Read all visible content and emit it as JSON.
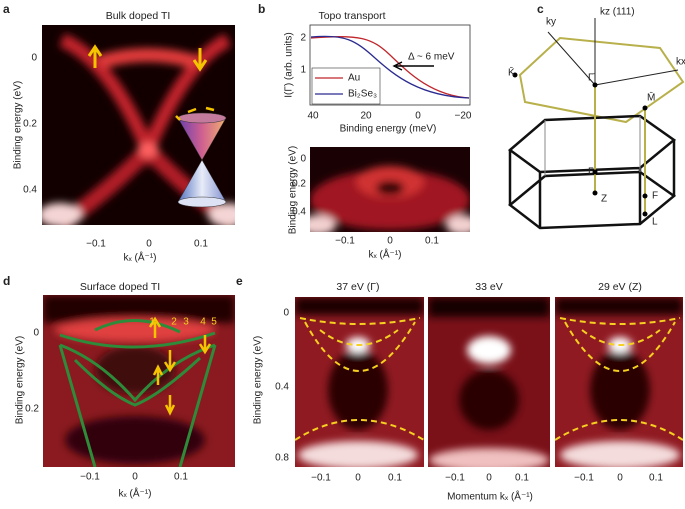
{
  "panel_a": {
    "letter": "a",
    "title": "Bulk doped TI",
    "y_axis_label": "Binding energy (eV)",
    "x_axis_label": "kₓ (Å⁻¹)",
    "y_ticks": [
      "0",
      "0.2",
      "0.4"
    ],
    "x_ticks": [
      "−0.1",
      "0",
      "0.1"
    ]
  },
  "panel_b": {
    "letter": "b",
    "title": "Topo transport",
    "top": {
      "y_axis_label": "I(Γ) (arb. units)",
      "x_axis_label": "Binding energy (meV)",
      "y_ticks": [
        "2",
        "1"
      ],
      "x_ticks": [
        "40",
        "20",
        "0",
        "−20"
      ],
      "legend": [
        "Au",
        "Bi₂Se₃"
      ],
      "annotation": "Δ ~ 6 meV"
    },
    "bottom": {
      "y_axis_label": "Binding energy (eV)",
      "x_axis_label": "kₓ (Å⁻¹)",
      "y_ticks": [
        "0",
        "0.2",
        "0.4"
      ],
      "x_ticks": [
        "−0.1",
        "0",
        "0.1"
      ]
    }
  },
  "panel_c": {
    "letter": "c",
    "labels": [
      "kz (111)",
      "ky",
      "kx",
      "K̄",
      "Γ̄",
      "M̄",
      "Γ",
      "Z",
      "F",
      "L"
    ]
  },
  "panel_d": {
    "letter": "d",
    "title": "Surface doped TI",
    "y_axis_label": "Binding energy (eV)",
    "x_axis_label": "kₓ (Å⁻¹)",
    "y_ticks": [
      "0",
      "0.2"
    ],
    "x_ticks": [
      "−0.1",
      "0",
      "0.1"
    ],
    "band_labels": [
      "1",
      "2",
      "3",
      "4",
      "5"
    ]
  },
  "panel_e": {
    "letter": "e",
    "y_axis_label": "Binding energy (eV)",
    "x_axis_label": "Momentum kₓ (Å⁻¹)",
    "y_ticks": [
      "0",
      "0.4",
      "0.8"
    ],
    "subpanels": [
      {
        "title": "37 eV (Γ)",
        "x_ticks": [
          "−0.1",
          "0",
          "0.1"
        ]
      },
      {
        "title": "33 eV",
        "x_ticks": [
          "−0.1",
          "0",
          "0.1"
        ]
      },
      {
        "title": "29 eV (Z)",
        "x_ticks": [
          "−0.1",
          "0",
          "0.1"
        ]
      }
    ]
  }
}
